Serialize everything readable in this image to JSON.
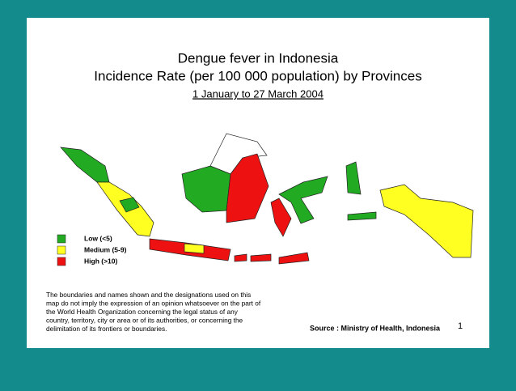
{
  "header": {
    "title_line1": "Dengue fever in Indonesia",
    "title_line2": "Incidence Rate (per 100 000 population) by  Provinces",
    "date_range": "1 January to  27 March 2004"
  },
  "legend": [
    {
      "label": "Low  (<5)",
      "color": "#22aa22"
    },
    {
      "label": "Medium  (5-9)",
      "color": "#ffff22"
    },
    {
      "label": "High (>10)",
      "color": "#ee1111"
    }
  ],
  "disclaimer": [
    "The boundaries and names shown and the designations used on this",
    "map do not imply the expression of an opinion whatsoever on the part of",
    "the World Health Organization concerning  the legal status of any",
    "country, territory, city or area or of its authorities, or concerning  the",
    "delimitation of its frontiers or boundaries."
  ],
  "source": "Source : Ministry of Health, Indonesia",
  "page_number": "1"
}
